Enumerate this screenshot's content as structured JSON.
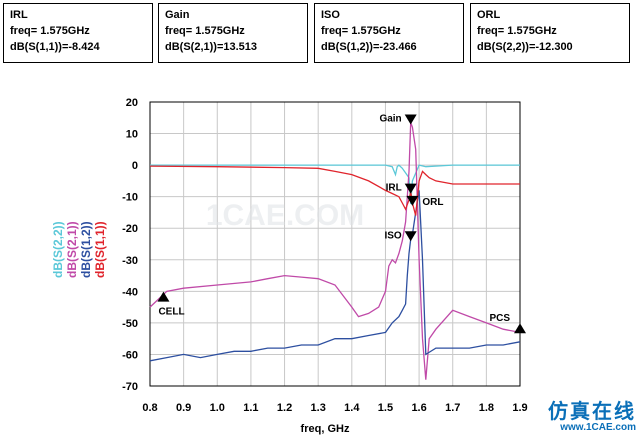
{
  "markers": [
    {
      "name": "IRL",
      "freq_label": "freq=",
      "freq_value": "1.575GHz",
      "expr": "dB(S(1,1))=-8.424"
    },
    {
      "name": "Gain",
      "freq_label": "freq=",
      "freq_value": "1.575GHz",
      "expr": "dB(S(2,1))=13.513"
    },
    {
      "name": "ISO",
      "freq_label": "freq=",
      "freq_value": "1.575GHz",
      "expr": "dB(S(1,2))=-23.466"
    },
    {
      "name": "ORL",
      "freq_label": "freq=",
      "freq_value": "1.575GHz",
      "expr": "dB(S(2,2))=-12.300"
    }
  ],
  "watermark": {
    "text": "仿真在线",
    "url": "www.1CAE.com",
    "center_text": "1CAE.COM"
  },
  "chart_data": {
    "type": "line",
    "xlabel": "freq, GHz",
    "ylabel_series": [
      "dB(S(2,2))",
      "dB(S(2,1))",
      "dB(S(1,2))",
      "dB(S(1,1))"
    ],
    "xlim": [
      0.8,
      1.9
    ],
    "ylim": [
      -70,
      20
    ],
    "xticks": [
      "0.8",
      "0.9",
      "1.0",
      "1.1",
      "1.2",
      "1.3",
      "1.4",
      "1.5",
      "1.6",
      "1.7",
      "1.8",
      "1.9"
    ],
    "yticks": [
      "20",
      "10",
      "0",
      "-10",
      "-20",
      "-30",
      "-40",
      "-50",
      "-60",
      "-70"
    ],
    "grid": true,
    "colors": {
      "S22": "#5bc8d8",
      "S21": "#c04aa8",
      "S12": "#2d4fa0",
      "S11": "#e0242c"
    },
    "series": [
      {
        "name": "dB(S(2,2))",
        "key": "S22",
        "x": [
          0.8,
          1.0,
          1.2,
          1.4,
          1.5,
          1.52,
          1.53,
          1.535,
          1.54,
          1.55,
          1.57,
          1.575,
          1.58,
          1.6,
          1.62,
          1.7,
          1.9
        ],
        "y": [
          0,
          0,
          0,
          0,
          0,
          -0.5,
          -3,
          -0.5,
          0,
          -1,
          -4,
          -12.3,
          -5,
          0,
          -0.5,
          0,
          0
        ]
      },
      {
        "name": "dB(S(2,1))",
        "key": "S21",
        "x": [
          0.8,
          0.83,
          0.85,
          0.9,
          1.0,
          1.1,
          1.15,
          1.2,
          1.25,
          1.3,
          1.35,
          1.4,
          1.42,
          1.45,
          1.48,
          1.5,
          1.51,
          1.52,
          1.53,
          1.54,
          1.55,
          1.56,
          1.57,
          1.575,
          1.58,
          1.59,
          1.6,
          1.61,
          1.62,
          1.63,
          1.65,
          1.7,
          1.75,
          1.8,
          1.85,
          1.9
        ],
        "y": [
          -45,
          -42,
          -40,
          -39,
          -38,
          -37,
          -36,
          -35,
          -35.5,
          -36,
          -38,
          -45,
          -48,
          -47,
          -45,
          -40,
          -32,
          -30,
          -31,
          -28,
          -24,
          -18,
          -2,
          13.5,
          12,
          5,
          -30,
          -55,
          -68,
          -55,
          -52,
          -46,
          -48,
          -50,
          -52,
          -53
        ]
      },
      {
        "name": "dB(S(1,2))",
        "key": "S12",
        "x": [
          0.8,
          0.85,
          0.9,
          0.95,
          1.0,
          1.05,
          1.1,
          1.15,
          1.2,
          1.25,
          1.3,
          1.35,
          1.4,
          1.45,
          1.5,
          1.52,
          1.54,
          1.55,
          1.56,
          1.565,
          1.57,
          1.575,
          1.58,
          1.59,
          1.6,
          1.61,
          1.62,
          1.65,
          1.7,
          1.75,
          1.8,
          1.85,
          1.9
        ],
        "y": [
          -62,
          -61,
          -60,
          -61,
          -60,
          -59,
          -59,
          -58,
          -58,
          -57,
          -57,
          -55,
          -55,
          -54,
          -53,
          -50,
          -48,
          -46,
          -44,
          -35,
          -28,
          -23.5,
          -22,
          -15,
          -8,
          -30,
          -60,
          -58,
          -58,
          -58,
          -57,
          -57,
          -56
        ]
      },
      {
        "name": "dB(S(1,1))",
        "key": "S11",
        "x": [
          0.8,
          1.0,
          1.2,
          1.3,
          1.35,
          1.4,
          1.45,
          1.5,
          1.52,
          1.54,
          1.55,
          1.56,
          1.57,
          1.575,
          1.58,
          1.59,
          1.6,
          1.61,
          1.62,
          1.63,
          1.65,
          1.7,
          1.8,
          1.9
        ],
        "y": [
          -0.3,
          -0.5,
          -0.8,
          -1,
          -2,
          -3,
          -5,
          -8,
          -9,
          -10,
          -12,
          -14,
          -11,
          -8.4,
          -12,
          -16,
          -5,
          -2,
          -3,
          -4,
          -5,
          -6,
          -6,
          -6
        ]
      }
    ],
    "point_markers": [
      {
        "label": "Gain",
        "x": 1.575,
        "y": 13.5,
        "side": "left"
      },
      {
        "label": "IRL",
        "x": 1.575,
        "y": -8.4,
        "side": "left"
      },
      {
        "label": "ORL",
        "x": 1.58,
        "y": -12.3,
        "side": "right"
      },
      {
        "label": "ISO",
        "x": 1.575,
        "y": -23.5,
        "side": "left"
      },
      {
        "label": "CELL",
        "x": 0.84,
        "y": -42,
        "side": "below"
      },
      {
        "label": "PCS",
        "x": 1.9,
        "y": -52,
        "side": "above"
      }
    ]
  }
}
